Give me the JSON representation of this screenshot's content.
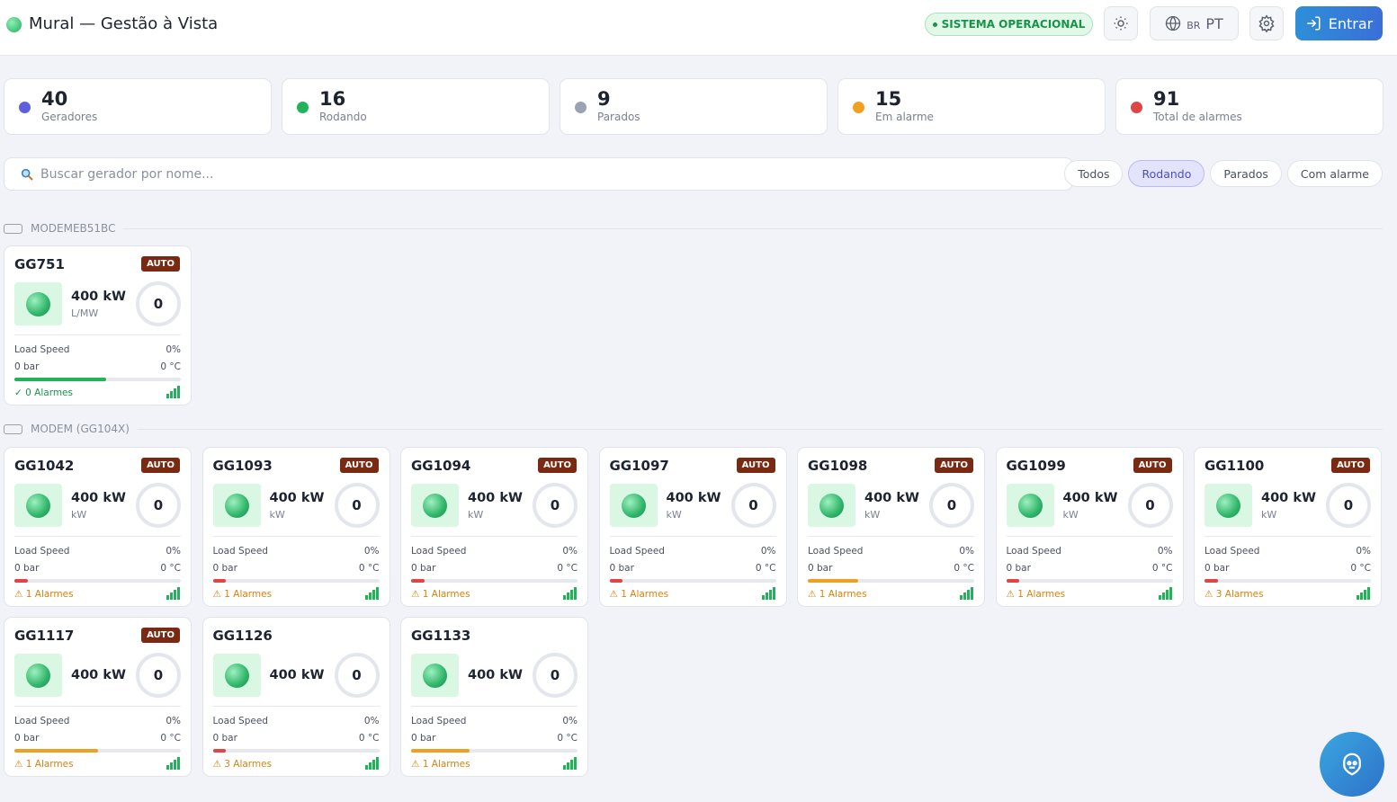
{
  "header": {
    "title": "Mural — Gestão à Vista",
    "status": "SISTEMA OPERACIONAL",
    "flag": "BR",
    "language": "PT",
    "login": "Entrar"
  },
  "stats": [
    {
      "value": "40",
      "label": "Geradores",
      "color": "#5b5fe0"
    },
    {
      "value": "16",
      "label": "Rodando",
      "color": "#22b25a"
    },
    {
      "value": "9",
      "label": "Parados",
      "color": "#9aa3b2"
    },
    {
      "value": "15",
      "label": "Em alarme",
      "color": "#f0a020"
    },
    {
      "value": "91",
      "label": "Total de alarmes",
      "color": "#e04444"
    }
  ],
  "search": {
    "placeholder": "Buscar gerador por nome..."
  },
  "filters": [
    "Todos",
    "Rodando",
    "Parados",
    "Com alarme"
  ],
  "groups": [
    {
      "name": "MODEMEB51BC",
      "cards": [
        {
          "name": "GG751",
          "mode": "AUTO",
          "power": "400 kW",
          "unit": "L/MW",
          "gauge": "0",
          "load_label": "Load Speed",
          "load": "0%",
          "pressure": "0 bar",
          "temp": "0 °C",
          "bar": 55,
          "bar_color": "#22b25a",
          "alarms": "✓ 0 Alarmes",
          "alarm_color": "#17944a"
        }
      ]
    },
    {
      "name": "MODEM (GG104X)",
      "cards": [
        {
          "name": "GG1042",
          "mode": "AUTO",
          "power": "400 kW",
          "unit": "kW",
          "gauge": "0",
          "load_label": "Load Speed",
          "load": "0%",
          "pressure": "0 bar",
          "temp": "0 °C",
          "bar": 8,
          "bar_color": "#e04444",
          "alarms": "⚠ 1 Alarmes",
          "alarm_color": "#d9820f"
        },
        {
          "name": "GG1093",
          "mode": "AUTO",
          "power": "400 kW",
          "unit": "kW",
          "gauge": "0",
          "load_label": "Load Speed",
          "load": "0%",
          "pressure": "0 bar",
          "temp": "0 °C",
          "bar": 8,
          "bar_color": "#e04444",
          "alarms": "⚠ 1 Alarmes",
          "alarm_color": "#d9820f"
        },
        {
          "name": "GG1094",
          "mode": "AUTO",
          "power": "400 kW",
          "unit": "kW",
          "gauge": "0",
          "load_label": "Load Speed",
          "load": "0%",
          "pressure": "0 bar",
          "temp": "0 °C",
          "bar": 8,
          "bar_color": "#e04444",
          "alarms": "⚠ 1 Alarmes",
          "alarm_color": "#d9820f"
        },
        {
          "name": "GG1097",
          "mode": "AUTO",
          "power": "400 kW",
          "unit": "kW",
          "gauge": "0",
          "load_label": "Load Speed",
          "load": "0%",
          "pressure": "0 bar",
          "temp": "0 °C",
          "bar": 8,
          "bar_color": "#e04444",
          "alarms": "⚠ 1 Alarmes",
          "alarm_color": "#d9820f"
        },
        {
          "name": "GG1098",
          "mode": "AUTO",
          "power": "400 kW",
          "unit": "kW",
          "gauge": "0",
          "load_label": "Load Speed",
          "load": "0%",
          "pressure": "0 bar",
          "temp": "0 °C",
          "bar": 30,
          "bar_color": "#f0a020",
          "alarms": "⚠ 1 Alarmes",
          "alarm_color": "#d9820f"
        },
        {
          "name": "GG1099",
          "mode": "AUTO",
          "power": "400 kW",
          "unit": "kW",
          "gauge": "0",
          "load_label": "Load Speed",
          "load": "0%",
          "pressure": "0 bar",
          "temp": "0 °C",
          "bar": 8,
          "bar_color": "#e04444",
          "alarms": "⚠ 1 Alarmes",
          "alarm_color": "#d9820f"
        },
        {
          "name": "GG1100",
          "mode": "AUTO",
          "power": "400 kW",
          "unit": "kW",
          "gauge": "0",
          "load_label": "Load Speed",
          "load": "0%",
          "pressure": "0 bar",
          "temp": "0 °C",
          "bar": 8,
          "bar_color": "#e04444",
          "alarms": "⚠ 3 Alarmes",
          "alarm_color": "#d9820f"
        },
        {
          "name": "GG1117",
          "mode": "AUTO",
          "power": "400 kW",
          "gauge": "0",
          "load_label": "Load Speed",
          "load": "0%",
          "pressure": "0 bar",
          "temp": "0 °C",
          "bar": 50,
          "bar_color": "#f0a020",
          "alarms": "⚠ 1 Alarmes",
          "alarm_color": "#d9820f"
        },
        {
          "name": "GG1126",
          "power": "400 kW",
          "gauge": "0",
          "load_label": "Load Speed",
          "load": "0%",
          "pressure": "0 bar",
          "temp": "0 °C",
          "bar": 8,
          "bar_color": "#e04444",
          "alarms": "⚠ 3 Alarmes",
          "alarm_color": "#d9820f"
        },
        {
          "name": "GG1133",
          "power": "400 kW",
          "gauge": "0",
          "load_label": "Load Speed",
          "load": "0%",
          "pressure": "0 bar",
          "temp": "0 °C",
          "bar": 35,
          "bar_color": "#f0a020",
          "alarms": "⚠ 1 Alarmes",
          "alarm_color": "#d9820f"
        }
      ]
    }
  ]
}
